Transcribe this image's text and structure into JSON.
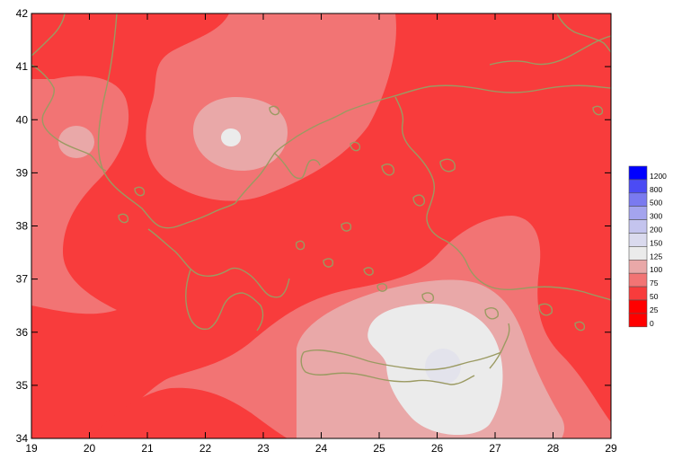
{
  "map": {
    "x_ticks": [
      "19",
      "20",
      "21",
      "22",
      "23",
      "24",
      "25",
      "26",
      "27",
      "28",
      "29"
    ],
    "y_ticks": [
      "34",
      "35",
      "36",
      "37",
      "38",
      "39",
      "40",
      "41",
      "42"
    ],
    "x_range": [
      19,
      29
    ],
    "y_range": [
      34,
      42
    ],
    "contour_colors": {
      "0_25": "#ff0000",
      "25_50": "#f83c3c",
      "50_75": "#f27474",
      "75_100": "#e9a8a8",
      "100_125": "#ebebeb",
      "125_150": "#e3e3ec",
      "coastline": "#9b9a62"
    }
  },
  "legend": {
    "items": [
      {
        "label": "1200",
        "color": "#0000ff"
      },
      {
        "label": "800",
        "color": "#4b4bf4"
      },
      {
        "label": "500",
        "color": "#7a7af0"
      },
      {
        "label": "300",
        "color": "#a4a4ee"
      },
      {
        "label": "200",
        "color": "#c4c4ee"
      },
      {
        "label": "150",
        "color": "#dadaee"
      },
      {
        "label": "125",
        "color": "#ebebeb"
      },
      {
        "label": "100",
        "color": "#e9a8a8"
      },
      {
        "label": "75",
        "color": "#f27474"
      },
      {
        "label": "50",
        "color": "#f83c3c"
      },
      {
        "label": "25",
        "color": "#ff0000"
      },
      {
        "label": "0",
        "color": "#ff0000"
      }
    ]
  }
}
